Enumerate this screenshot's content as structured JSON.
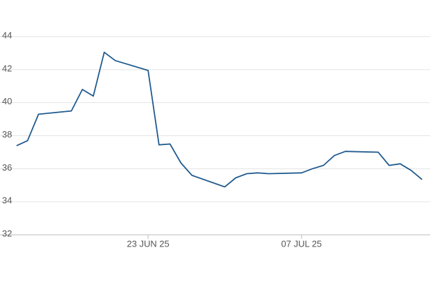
{
  "chart_data": {
    "type": "line",
    "x": [
      "2025-06-11",
      "2025-06-12",
      "2025-06-13",
      "2025-06-16",
      "2025-06-17",
      "2025-06-18",
      "2025-06-19",
      "2025-06-20",
      "2025-06-23",
      "2025-06-24",
      "2025-06-25",
      "2025-06-26",
      "2025-06-27",
      "2025-06-30",
      "2025-07-01",
      "2025-07-02",
      "2025-07-03",
      "2025-07-04",
      "2025-07-07",
      "2025-07-08",
      "2025-07-09",
      "2025-07-10",
      "2025-07-11",
      "2025-07-14",
      "2025-07-15",
      "2025-07-16",
      "2025-07-17",
      "2025-07-18"
    ],
    "values": [
      37.4,
      37.7,
      39.3,
      39.5,
      40.8,
      40.4,
      43.05,
      42.55,
      41.95,
      37.45,
      37.5,
      36.35,
      35.6,
      34.9,
      35.45,
      35.7,
      35.75,
      35.7,
      35.75,
      36.0,
      36.2,
      36.8,
      37.05,
      37.0,
      36.2,
      36.3,
      35.9,
      35.35
    ],
    "color": "#1f5a8f",
    "xlim": [
      "2025-06-11",
      "2025-07-19"
    ],
    "xticks": [
      {
        "value": "2025-06-23",
        "label": "23 JUN 25"
      },
      {
        "value": "2025-07-07",
        "label": "07 JUL 25"
      }
    ],
    "ylim": [
      32,
      44
    ],
    "yticks": [
      32,
      34,
      36,
      38,
      40,
      42,
      44
    ],
    "grid": true
  }
}
